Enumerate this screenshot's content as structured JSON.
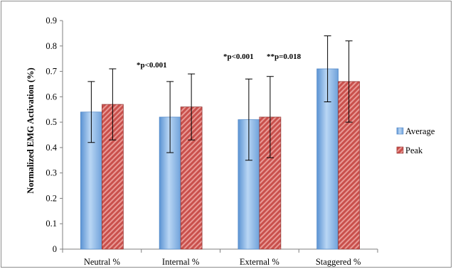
{
  "chart_data": {
    "type": "bar",
    "title": "",
    "xlabel": "",
    "ylabel": "Normalized EMG Activation (%)",
    "ylim": [
      0,
      0.9
    ],
    "yticks": [
      "0",
      "0.1",
      "0.2",
      "0.3",
      "0.4",
      "0.5",
      "0.6",
      "0.7",
      "0.8",
      "0.9"
    ],
    "categories": [
      "Neutral %",
      "Internal %",
      "External %",
      "Staggered %"
    ],
    "series": [
      {
        "name": "Average",
        "values": [
          0.54,
          0.52,
          0.51,
          0.71
        ],
        "err_low": [
          0.42,
          0.38,
          0.35,
          0.58
        ],
        "err_high": [
          0.66,
          0.66,
          0.67,
          0.84
        ],
        "color": "#8ebbe8",
        "color_dark": "#4f86c6"
      },
      {
        "name": "Peak",
        "values": [
          0.57,
          0.56,
          0.52,
          0.66
        ],
        "err_low": [
          0.43,
          0.43,
          0.36,
          0.5
        ],
        "err_high": [
          0.71,
          0.69,
          0.68,
          0.82
        ],
        "color": "#c0504d",
        "color_dark": "#8b2b28"
      }
    ],
    "annotations": [
      "*p<0.001",
      "*p<0.001",
      "**p=0.018"
    ],
    "grid": false,
    "legend_position": "right"
  }
}
